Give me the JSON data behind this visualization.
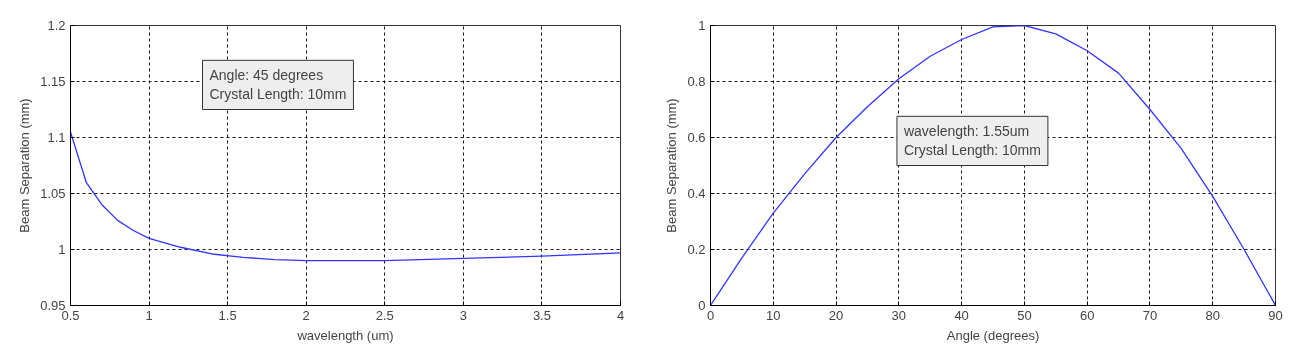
{
  "chart_data": [
    {
      "type": "line",
      "xlabel": "wavelength (um)",
      "ylabel": "Beam Separation (mm)",
      "x": [
        0.5,
        0.6,
        0.7,
        0.8,
        0.9,
        1.0,
        1.2,
        1.4,
        1.6,
        1.8,
        2.0,
        2.5,
        3.0,
        3.5,
        4.0
      ],
      "series": [
        {
          "color": "#3333ff",
          "values": [
            1.105,
            1.06,
            1.04,
            1.026,
            1.017,
            1.01,
            1.002,
            0.996,
            0.993,
            0.991,
            0.99,
            0.99,
            0.992,
            0.994,
            0.997
          ]
        }
      ],
      "xlim": [
        0.5,
        4
      ],
      "xticks": [
        0.5,
        1,
        1.5,
        2,
        2.5,
        3,
        3.5,
        4
      ],
      "ylim": [
        0.95,
        1.2
      ],
      "yticks": [
        0.95,
        1,
        1.05,
        1.1,
        1.15,
        1.2
      ],
      "grid": true,
      "line_style": "solid",
      "annotations": [
        "Angle: 45 degrees\nCrystal Length: 10mm"
      ]
    },
    {
      "type": "line",
      "xlabel": "Angle (degrees)",
      "ylabel": "Beam Separation (mm)",
      "x": [
        0,
        5,
        10,
        15,
        20,
        25,
        30,
        35,
        40,
        45,
        50,
        55,
        60,
        65,
        70,
        75,
        80,
        85,
        90
      ],
      "series": [
        {
          "color": "#3333ff",
          "values": [
            0,
            0.17,
            0.33,
            0.47,
            0.6,
            0.71,
            0.81,
            0.89,
            0.95,
            0.995,
            1.0,
            0.97,
            0.91,
            0.83,
            0.7,
            0.56,
            0.39,
            0.2,
            0
          ]
        }
      ],
      "xlim": [
        0,
        90
      ],
      "xticks": [
        0,
        10,
        20,
        30,
        40,
        50,
        60,
        70,
        80,
        90
      ],
      "ylim": [
        0,
        1
      ],
      "yticks": [
        0,
        0.2,
        0.4,
        0.6,
        0.8,
        1
      ],
      "grid": true,
      "line_style": "solid",
      "annotations": [
        "wavelength: 1.55um\nCrystal Length: 10mm"
      ]
    }
  ]
}
